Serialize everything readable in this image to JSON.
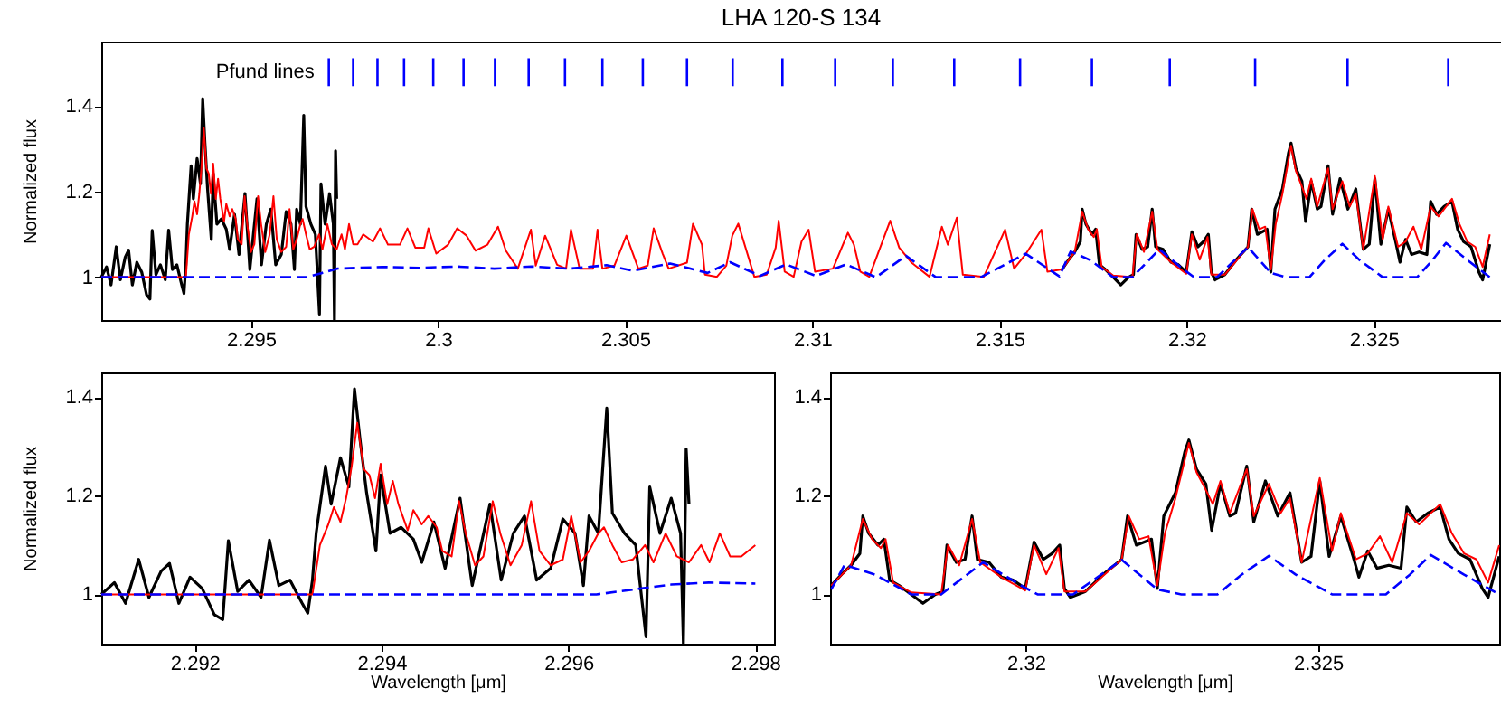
{
  "chart_data": [
    {
      "type": "line",
      "title": "LHA 120-S 134",
      "ylabel": "Normalized flux",
      "xlim": [
        2.291,
        2.3284
      ],
      "xticks": [
        2.295,
        2.3,
        2.305,
        2.31,
        2.315,
        2.32,
        2.325
      ],
      "ylim": [
        0.9,
        1.55
      ],
      "yticks": [
        1,
        1.2,
        1.4
      ],
      "annotations": [
        "Pfund lines"
      ],
      "ref_lines": [
        {
          "axis": "x",
          "value": 2.29708,
          "color": "#0000ff"
        },
        {
          "axis": "x",
          "value": 2.29773,
          "color": "#0000ff"
        },
        {
          "axis": "x",
          "value": 2.29838,
          "color": "#0000ff"
        },
        {
          "axis": "x",
          "value": 2.29909,
          "color": "#0000ff"
        },
        {
          "axis": "x",
          "value": 2.29987,
          "color": "#0000ff"
        },
        {
          "axis": "x",
          "value": 2.30068,
          "color": "#0000ff"
        },
        {
          "axis": "x",
          "value": 2.30152,
          "color": "#0000ff"
        },
        {
          "axis": "x",
          "value": 2.30242,
          "color": "#0000ff"
        },
        {
          "axis": "x",
          "value": 2.30339,
          "color": "#0000ff"
        },
        {
          "axis": "x",
          "value": 2.30439,
          "color": "#0000ff"
        },
        {
          "axis": "x",
          "value": 2.30547,
          "color": "#0000ff"
        },
        {
          "axis": "x",
          "value": 2.30665,
          "color": "#0000ff"
        },
        {
          "axis": "x",
          "value": 2.30787,
          "color": "#0000ff"
        },
        {
          "axis": "x",
          "value": 2.3092,
          "color": "#0000ff"
        },
        {
          "axis": "x",
          "value": 2.31061,
          "color": "#0000ff"
        },
        {
          "axis": "x",
          "value": 2.31215,
          "color": "#0000ff"
        },
        {
          "axis": "x",
          "value": 2.31379,
          "color": "#0000ff"
        },
        {
          "axis": "x",
          "value": 2.31555,
          "color": "#0000ff"
        },
        {
          "axis": "x",
          "value": 2.31747,
          "color": "#0000ff"
        },
        {
          "axis": "x",
          "value": 2.31955,
          "color": "#0000ff"
        },
        {
          "axis": "x",
          "value": 2.32183,
          "color": "#0000ff"
        },
        {
          "axis": "x",
          "value": 2.3243,
          "color": "#0000ff"
        },
        {
          "axis": "x",
          "value": 2.32699,
          "color": "#0000ff"
        }
      ],
      "series": [
        {
          "color": "#000000",
          "x": [
            2.291,
            2.29114,
            2.29126,
            2.2914,
            2.29151,
            2.29164,
            2.29173,
            2.29183,
            2.29195,
            2.29208,
            2.29221,
            2.2923,
            2.29236,
            2.29246,
            2.29258,
            2.29271,
            2.2928,
            2.2929,
            2.29302,
            2.29315,
            2.29321,
            2.29326,
            2.2933,
            2.2934,
            2.29346,
            2.29356,
            2.29365,
            2.29371,
            2.29377,
            2.29384,
            2.29394,
            2.29399,
            2.29409,
            2.29421,
            2.29434,
            2.29443,
            2.29456,
            2.29468,
            2.29484,
            2.29497,
            2.29516,
            2.29528,
            2.29541,
            2.29553,
            2.29566,
            2.29581,
            2.29594,
            2.29607,
            2.29616,
            2.29622,
            2.29632,
            2.29641,
            2.29647,
            2.2966,
            2.29672,
            2.29683,
            2.29687,
            2.29698,
            2.2971,
            2.2972,
            2.29723,
            2.29726,
            2.29729,
            2.305,
            2.31667,
            2.31685,
            2.31701,
            2.31716,
            2.31721,
            2.31731,
            2.31747,
            2.31757,
            2.31767,
            2.31783,
            2.31804,
            2.31824,
            2.31845,
            2.31858,
            2.31865,
            2.31881,
            2.31896,
            2.31908,
            2.31917,
            2.31937,
            2.31958,
            2.31978,
            2.31999,
            2.32014,
            2.3203,
            2.32045,
            2.32058,
            2.32066,
            2.32076,
            2.32102,
            2.32133,
            2.32164,
            2.32174,
            2.32189,
            2.32215,
            2.32225,
            2.32236,
            2.32256,
            2.32272,
            2.32279,
            2.32292,
            2.32308,
            2.32318,
            2.32333,
            2.32349,
            2.32359,
            2.32378,
            2.3239,
            2.3241,
            2.32431,
            2.32452,
            2.32472,
            2.32488,
            2.32503,
            2.32519,
            2.32539,
            2.3256,
            2.3257,
            2.32585,
            2.32601,
            2.32621,
            2.32642,
            2.32652,
            2.32668,
            2.32688,
            2.32709,
            2.32724,
            2.3274,
            2.3276,
            2.32781,
            2.32791,
            2.3281
          ],
          "values": [
            1.0,
            1.024,
            0.982,
            1.071,
            0.994,
            1.047,
            1.063,
            0.982,
            1.035,
            1.012,
            0.959,
            0.949,
            1.109,
            1.006,
            1.029,
            0.994,
            1.11,
            1.018,
            1.029,
            0.982,
            0.962,
            1.029,
            1.124,
            1.26,
            1.183,
            1.277,
            1.218,
            1.417,
            1.313,
            1.206,
            1.088,
            1.242,
            1.124,
            1.136,
            1.112,
            1.065,
            1.147,
            1.053,
            1.195,
            1.018,
            1.183,
            1.029,
            1.124,
            1.159,
            1.029,
            1.053,
            1.153,
            1.124,
            1.018,
            1.159,
            1.124,
            1.378,
            1.165,
            1.124,
            1.1,
            0.914,
            1.218,
            1.124,
            1.195,
            1.124,
            0.9,
            1.295,
            1.183,
            null,
            1.018,
            1.041,
            1.059,
            1.083,
            1.159,
            1.124,
            1.1,
            1.112,
            1.029,
            1.018,
            1.0,
            0.982,
            1.0,
            1.006,
            1.1,
            1.065,
            1.071,
            1.159,
            1.071,
            1.065,
            1.035,
            1.029,
            1.012,
            1.106,
            1.071,
            1.083,
            1.1,
            1.012,
            0.994,
            1.006,
            1.041,
            1.071,
            1.159,
            1.1,
            1.112,
            1.012,
            1.159,
            1.206,
            1.289,
            1.313,
            1.254,
            1.224,
            1.13,
            1.224,
            1.159,
            1.165,
            1.26,
            1.147,
            1.23,
            1.159,
            1.206,
            1.065,
            1.077,
            1.23,
            1.077,
            1.159,
            1.077,
            1.035,
            1.088,
            1.053,
            1.059,
            1.053,
            1.177,
            1.147,
            1.165,
            1.177,
            1.112,
            1.083,
            1.071,
            1.012,
            0.994,
            1.077
          ]
        },
        {
          "color": "#ff0000",
          "x": [
            2.291,
            2.29326,
            2.29334,
            2.29343,
            2.29349,
            2.29356,
            2.29362,
            2.29368,
            2.29374,
            2.29381,
            2.29387,
            2.29393,
            2.29399,
            2.29406,
            2.29412,
            2.29418,
            2.29428,
            2.29434,
            2.29443,
            2.2945,
            2.29459,
            2.29465,
            2.29475,
            2.29483,
            2.2949,
            2.295,
            2.29509,
            2.29519,
            2.29527,
            2.29538,
            2.2955,
            2.2956,
            2.29569,
            2.29581,
            2.29594,
            2.29603,
            2.29613,
            2.29622,
            2.29632,
            2.29638,
            2.29647,
            2.29657,
            2.29669,
            2.29682,
            2.29691,
            2.29704,
            2.29716,
            2.29729,
            2.29742,
            2.29751,
            2.29762,
            2.29773,
            2.29785,
            2.298,
            2.29826,
            2.29845,
            2.29866,
            2.29898,
            2.29918,
            2.29939,
            2.29963,
            2.29974,
            2.29995,
            2.30027,
            2.30051,
            2.30076,
            2.301,
            2.30132,
            2.3016,
            2.30181,
            2.30213,
            2.30248,
            2.30261,
            2.30286,
            2.30318,
            2.30342,
            2.30355,
            2.30378,
            2.30414,
            2.30426,
            2.30439,
            2.30471,
            2.30503,
            2.30535,
            2.3056,
            2.30576,
            2.306,
            2.30616,
            2.30665,
            2.30681,
            2.30705,
            2.30713,
            2.30745,
            2.3077,
            2.30786,
            2.30802,
            2.30845,
            2.30878,
            2.30902,
            2.3091,
            2.30926,
            2.3095,
            2.30971,
            2.3099,
            2.31007,
            2.31055,
            2.31095,
            2.31111,
            2.31128,
            2.31152,
            2.31208,
            2.31232,
            2.31265,
            2.31313,
            2.31346,
            2.31362,
            2.31386,
            2.31402,
            2.31458,
            2.31515,
            2.31539,
            2.31571,
            2.31612,
            2.31628,
            2.31667,
            2.31701,
            2.31721,
            2.31737,
            2.31752,
            2.3176,
            2.31773,
            2.31804,
            2.31855,
            2.31867,
            2.31886,
            2.31908,
            2.31922,
            2.31958,
            2.31999,
            2.32014,
            2.32035,
            2.32056,
            2.32066,
            2.32102,
            2.32164,
            2.32176,
            2.32194,
            2.3221,
            2.32225,
            2.32238,
            2.32256,
            2.32279,
            2.32292,
            2.32308,
            2.3232,
            2.32333,
            2.32349,
            2.32378,
            2.3239,
            2.32416,
            2.32436,
            2.32452,
            2.32472,
            2.32503,
            2.32524,
            2.32539,
            2.32565,
            2.32585,
            2.32606,
            2.32627,
            2.32652,
            2.32673,
            2.32709,
            2.32729,
            2.3275,
            2.32771,
            2.32791,
            2.3281
          ],
          "values": [
            1.0,
            1.0,
            1.1,
            1.142,
            1.177,
            1.147,
            1.195,
            1.26,
            1.348,
            1.254,
            1.242,
            1.195,
            1.265,
            1.183,
            1.23,
            1.183,
            1.13,
            1.171,
            1.142,
            1.159,
            1.136,
            1.088,
            1.077,
            1.189,
            1.124,
            1.059,
            1.077,
            1.189,
            1.124,
            1.059,
            1.1,
            1.189,
            1.088,
            1.059,
            1.071,
            1.159,
            1.065,
            1.088,
            1.124,
            1.136,
            1.1,
            1.065,
            1.071,
            1.1,
            1.065,
            1.124,
            1.077,
            1.065,
            1.1,
            1.065,
            1.124,
            1.077,
            1.077,
            1.1,
            1.083,
            1.114,
            1.076,
            1.076,
            1.114,
            1.069,
            1.069,
            1.114,
            1.055,
            1.076,
            1.114,
            1.097,
            1.062,
            1.076,
            1.118,
            1.062,
            1.02,
            1.111,
            1.027,
            1.097,
            1.029,
            1.02,
            1.111,
            1.02,
            1.02,
            1.111,
            1.02,
            1.027,
            1.097,
            1.02,
            1.027,
            1.114,
            1.055,
            1.02,
            1.034,
            1.125,
            1.076,
            1.006,
            1.001,
            1.027,
            1.097,
            1.125,
            1.001,
            1.006,
            1.069,
            1.132,
            1.013,
            1.001,
            1.083,
            1.111,
            1.013,
            1.02,
            1.104,
            1.076,
            1.013,
            1.001,
            1.132,
            1.069,
            1.034,
            1.001,
            1.118,
            1.076,
            1.139,
            1.006,
            1.001,
            1.111,
            1.02,
            1.055,
            1.111,
            1.013,
            1.018,
            1.059,
            1.153,
            1.112,
            1.094,
            1.112,
            1.024,
            1.004,
            1.0,
            1.1,
            1.059,
            1.153,
            1.065,
            1.035,
            1.008,
            1.1,
            1.041,
            1.094,
            1.006,
            1.006,
            1.071,
            1.159,
            1.112,
            1.118,
            1.018,
            1.124,
            1.195,
            1.307,
            1.248,
            1.212,
            1.183,
            1.23,
            1.165,
            1.254,
            1.159,
            1.224,
            1.165,
            1.195,
            1.065,
            1.236,
            1.088,
            1.165,
            1.071,
            1.083,
            1.118,
            1.065,
            1.165,
            1.142,
            1.183,
            1.124,
            1.083,
            1.071,
            1.024,
            1.1
          ]
        },
        {
          "color": "#0000ff",
          "line_style": "dashed",
          "x": [
            2.291,
            2.2965,
            2.2969,
            2.2973,
            2.2985,
            2.2995,
            2.3005,
            2.3015,
            2.3025,
            2.3035,
            2.3045,
            2.3052,
            2.3062,
            2.3072,
            2.3078,
            2.3086,
            2.3093,
            2.3101,
            2.3109,
            2.3117,
            2.3125,
            2.3133,
            2.3145,
            2.3157,
            2.3166,
            2.3169,
            2.31742,
            2.31804,
            2.31855,
            2.31927,
            2.31989,
            2.3202,
            2.32081,
            2.32164,
            2.32225,
            2.32266,
            2.32328,
            2.32369,
            2.32416,
            2.32462,
            2.32524,
            2.32616,
            2.32657,
            2.32693,
            2.3275,
            2.3281
          ],
          "values": [
            1.0,
            1.0,
            1.01,
            1.02,
            1.024,
            1.022,
            1.025,
            1.02,
            1.025,
            1.02,
            1.028,
            1.015,
            1.032,
            1.01,
            1.035,
            1.003,
            1.03,
            1.003,
            1.03,
            1.0,
            1.05,
            1.0,
            1.0,
            1.055,
            1.002,
            1.06,
            1.04,
            1.0,
            1.0,
            1.065,
            1.02,
            1.0,
            1.0,
            1.07,
            1.01,
            1.0,
            1.0,
            1.04,
            1.078,
            1.04,
            1.0,
            1.0,
            1.04,
            1.08,
            1.04,
            1.0
          ]
        }
      ]
    },
    {
      "type": "line",
      "xlabel": "Wavelength [μm]",
      "ylabel": "Normalized flux",
      "xlim": [
        2.291,
        2.2982
      ],
      "xticks": [
        2.292,
        2.294,
        2.296,
        2.298
      ],
      "ylim": [
        0.9,
        1.45
      ],
      "yticks": [
        1,
        1.2,
        1.4
      ],
      "series": [
        {
          "color": "#000000",
          "x": [
            2.291,
            2.29114,
            2.29126,
            2.2914,
            2.29151,
            2.29164,
            2.29173,
            2.29183,
            2.29195,
            2.29208,
            2.29221,
            2.2923,
            2.29236,
            2.29246,
            2.29258,
            2.29271,
            2.2928,
            2.2929,
            2.29302,
            2.29315,
            2.29321,
            2.29326,
            2.2933,
            2.2934,
            2.29346,
            2.29356,
            2.29365,
            2.29371,
            2.29377,
            2.29384,
            2.29394,
            2.29399,
            2.29409,
            2.29421,
            2.29434,
            2.29443,
            2.29456,
            2.29468,
            2.29484,
            2.29497,
            2.29516,
            2.29528,
            2.29541,
            2.29553,
            2.29566,
            2.29581,
            2.29594,
            2.29607,
            2.29616,
            2.29622,
            2.29632,
            2.29641,
            2.29647,
            2.2966,
            2.29672,
            2.29683,
            2.29687,
            2.29698,
            2.2971,
            2.2972,
            2.29723,
            2.29726,
            2.29729
          ],
          "values": [
            1.0,
            1.024,
            0.982,
            1.071,
            0.994,
            1.047,
            1.063,
            0.982,
            1.035,
            1.012,
            0.959,
            0.949,
            1.109,
            1.006,
            1.029,
            0.994,
            1.11,
            1.018,
            1.029,
            0.982,
            0.962,
            1.029,
            1.124,
            1.26,
            1.183,
            1.277,
            1.218,
            1.417,
            1.313,
            1.206,
            1.088,
            1.242,
            1.124,
            1.136,
            1.112,
            1.065,
            1.147,
            1.053,
            1.195,
            1.018,
            1.183,
            1.029,
            1.124,
            1.159,
            1.029,
            1.053,
            1.153,
            1.124,
            1.018,
            1.159,
            1.124,
            1.378,
            1.165,
            1.124,
            1.1,
            0.914,
            1.218,
            1.124,
            1.195,
            1.124,
            0.9,
            1.295,
            1.183
          ]
        },
        {
          "color": "#ff0000",
          "x": [
            2.291,
            2.29326,
            2.29334,
            2.29343,
            2.29349,
            2.29356,
            2.29362,
            2.29368,
            2.29374,
            2.29381,
            2.29387,
            2.29393,
            2.29399,
            2.29406,
            2.29412,
            2.29418,
            2.29428,
            2.29434,
            2.29443,
            2.2945,
            2.29459,
            2.29465,
            2.29475,
            2.29483,
            2.2949,
            2.295,
            2.29509,
            2.29519,
            2.29527,
            2.29538,
            2.2955,
            2.2956,
            2.29569,
            2.29581,
            2.29594,
            2.29603,
            2.29613,
            2.29622,
            2.29632,
            2.29638,
            2.29647,
            2.29657,
            2.29669,
            2.29682,
            2.29691,
            2.29704,
            2.29716,
            2.29729,
            2.29742,
            2.29751,
            2.29762,
            2.29773,
            2.29785,
            2.298
          ],
          "values": [
            1.0,
            1.0,
            1.1,
            1.142,
            1.177,
            1.147,
            1.195,
            1.26,
            1.348,
            1.254,
            1.242,
            1.195,
            1.265,
            1.183,
            1.23,
            1.183,
            1.13,
            1.171,
            1.142,
            1.159,
            1.136,
            1.088,
            1.077,
            1.189,
            1.124,
            1.059,
            1.077,
            1.189,
            1.124,
            1.059,
            1.1,
            1.189,
            1.088,
            1.059,
            1.071,
            1.159,
            1.065,
            1.088,
            1.124,
            1.136,
            1.1,
            1.065,
            1.071,
            1.1,
            1.065,
            1.124,
            1.077,
            1.065,
            1.1,
            1.065,
            1.124,
            1.077,
            1.077,
            1.1
          ]
        },
        {
          "color": "#0000ff",
          "line_style": "dashed",
          "x": [
            2.291,
            2.2963,
            2.2967,
            2.2971,
            2.2975,
            2.298
          ],
          "values": [
            1.0,
            1.0,
            1.01,
            1.02,
            1.024,
            1.022
          ]
        }
      ]
    },
    {
      "type": "line",
      "xlabel": "Wavelength [μm]",
      "xlim": [
        2.31665,
        2.3281
      ],
      "xticks": [
        2.32,
        2.325
      ],
      "ylim": [
        0.9,
        1.45
      ],
      "yticks": [
        1,
        1.2,
        1.4
      ],
      "series": [
        {
          "color": "#000000",
          "x": [
            2.31667,
            2.31685,
            2.31701,
            2.31716,
            2.31721,
            2.31731,
            2.31747,
            2.31757,
            2.31767,
            2.31783,
            2.31804,
            2.31824,
            2.31845,
            2.31858,
            2.31865,
            2.31881,
            2.31896,
            2.31908,
            2.31917,
            2.31937,
            2.31958,
            2.31978,
            2.31999,
            2.32014,
            2.3203,
            2.32045,
            2.32058,
            2.32066,
            2.32076,
            2.32102,
            2.32133,
            2.32164,
            2.32174,
            2.32189,
            2.32215,
            2.32225,
            2.32236,
            2.32256,
            2.32272,
            2.32279,
            2.32292,
            2.32308,
            2.32318,
            2.32333,
            2.32349,
            2.32359,
            2.32378,
            2.3239,
            2.3241,
            2.32431,
            2.32452,
            2.32472,
            2.32488,
            2.32503,
            2.32519,
            2.32539,
            2.3256,
            2.3257,
            2.32585,
            2.32601,
            2.32621,
            2.32642,
            2.32652,
            2.32668,
            2.32688,
            2.32709,
            2.32724,
            2.3274,
            2.3276,
            2.32781,
            2.32791,
            2.3281
          ],
          "values": [
            1.018,
            1.041,
            1.059,
            1.083,
            1.159,
            1.124,
            1.1,
            1.112,
            1.029,
            1.018,
            1.0,
            0.982,
            1.0,
            1.006,
            1.1,
            1.065,
            1.071,
            1.159,
            1.071,
            1.065,
            1.035,
            1.029,
            1.012,
            1.106,
            1.071,
            1.083,
            1.1,
            1.012,
            0.994,
            1.006,
            1.041,
            1.071,
            1.159,
            1.1,
            1.112,
            1.012,
            1.159,
            1.206,
            1.289,
            1.313,
            1.254,
            1.224,
            1.13,
            1.224,
            1.159,
            1.165,
            1.26,
            1.147,
            1.23,
            1.159,
            1.206,
            1.065,
            1.077,
            1.23,
            1.077,
            1.159,
            1.077,
            1.035,
            1.088,
            1.053,
            1.059,
            1.053,
            1.177,
            1.147,
            1.165,
            1.177,
            1.112,
            1.083,
            1.071,
            1.012,
            0.994,
            1.077
          ]
        },
        {
          "color": "#ff0000",
          "x": [
            2.31667,
            2.31701,
            2.31721,
            2.31737,
            2.31752,
            2.3176,
            2.31773,
            2.31804,
            2.31855,
            2.31867,
            2.31886,
            2.31908,
            2.31922,
            2.31958,
            2.31999,
            2.32014,
            2.32035,
            2.32056,
            2.32066,
            2.32102,
            2.32164,
            2.32176,
            2.32194,
            2.3221,
            2.32225,
            2.32238,
            2.32256,
            2.32279,
            2.32292,
            2.32308,
            2.3232,
            2.32333,
            2.32349,
            2.32378,
            2.3239,
            2.32416,
            2.32436,
            2.32452,
            2.32472,
            2.32503,
            2.32524,
            2.32539,
            2.32565,
            2.32585,
            2.32606,
            2.32627,
            2.32652,
            2.32673,
            2.32709,
            2.32729,
            2.3275,
            2.32771,
            2.32791,
            2.3281
          ],
          "values": [
            1.018,
            1.059,
            1.153,
            1.112,
            1.094,
            1.112,
            1.024,
            1.004,
            1.0,
            1.1,
            1.059,
            1.153,
            1.065,
            1.035,
            1.008,
            1.1,
            1.041,
            1.094,
            1.006,
            1.006,
            1.071,
            1.159,
            1.112,
            1.118,
            1.018,
            1.124,
            1.195,
            1.307,
            1.248,
            1.212,
            1.183,
            1.23,
            1.165,
            1.254,
            1.159,
            1.224,
            1.165,
            1.195,
            1.065,
            1.236,
            1.088,
            1.165,
            1.071,
            1.083,
            1.118,
            1.065,
            1.165,
            1.142,
            1.183,
            1.124,
            1.083,
            1.071,
            1.024,
            1.1
          ]
        },
        {
          "color": "#0000ff",
          "line_style": "dashed",
          "x": [
            2.31667,
            2.3169,
            2.31742,
            2.31804,
            2.31855,
            2.31927,
            2.31989,
            2.3202,
            2.32081,
            2.32164,
            2.32225,
            2.32266,
            2.32328,
            2.32369,
            2.32416,
            2.32462,
            2.32524,
            2.32616,
            2.32657,
            2.32693,
            2.3275,
            2.3281
          ],
          "values": [
            1.01,
            1.06,
            1.04,
            1.0,
            1.0,
            1.065,
            1.02,
            1.0,
            1.0,
            1.07,
            1.01,
            1.0,
            1.0,
            1.04,
            1.078,
            1.04,
            1.0,
            1.0,
            1.04,
            1.08,
            1.04,
            1.0
          ]
        }
      ]
    }
  ]
}
